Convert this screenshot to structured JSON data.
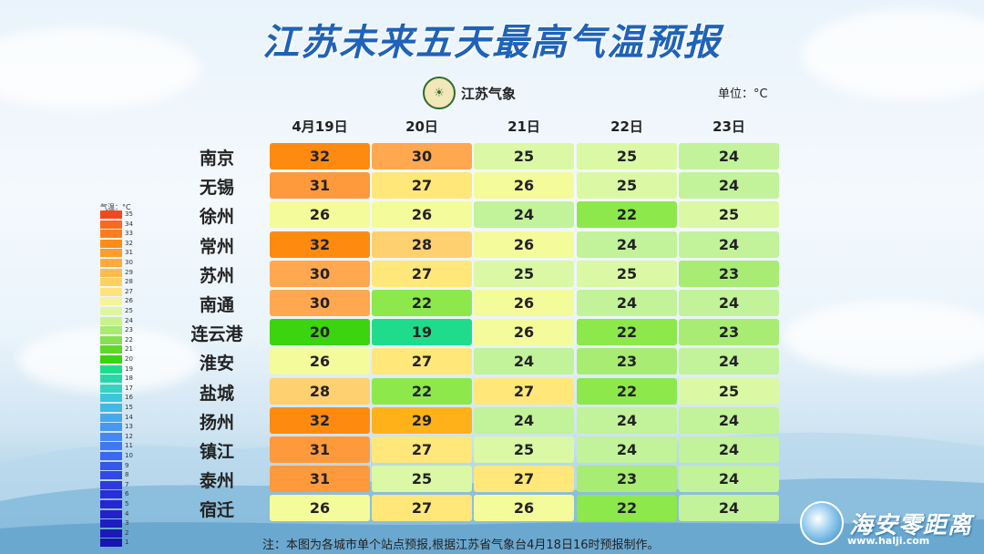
{
  "title": "江苏未来五天最高气温预报",
  "logo_text": "江苏气象",
  "logo_icon": "weather-service-emblem-icon",
  "unit_label": "单位：°C",
  "dates": [
    "4月19日",
    "20日",
    "21日",
    "22日",
    "23日"
  ],
  "cities": [
    {
      "name": "南京",
      "temps": [
        "32",
        "30",
        "25",
        "25",
        "24"
      ]
    },
    {
      "name": "无锡",
      "temps": [
        "31",
        "27",
        "26",
        "25",
        "24"
      ]
    },
    {
      "name": "徐州",
      "temps": [
        "26",
        "26",
        "24",
        "22",
        "25"
      ]
    },
    {
      "name": "常州",
      "temps": [
        "32",
        "28",
        "26",
        "24",
        "24"
      ]
    },
    {
      "name": "苏州",
      "temps": [
        "30",
        "27",
        "25",
        "25",
        "23"
      ]
    },
    {
      "name": "南通",
      "temps": [
        "30",
        "22",
        "26",
        "24",
        "24"
      ]
    },
    {
      "name": "连云港",
      "temps": [
        "20",
        "19",
        "26",
        "22",
        "23"
      ]
    },
    {
      "name": "淮安",
      "temps": [
        "26",
        "27",
        "24",
        "23",
        "24"
      ]
    },
    {
      "name": "盐城",
      "temps": [
        "28",
        "22",
        "27",
        "22",
        "25"
      ]
    },
    {
      "name": "扬州",
      "temps": [
        "32",
        "29",
        "24",
        "24",
        "24"
      ]
    },
    {
      "name": "镇江",
      "temps": [
        "31",
        "27",
        "25",
        "24",
        "24"
      ]
    },
    {
      "name": "泰州",
      "temps": [
        "31",
        "25",
        "27",
        "23",
        "24"
      ]
    },
    {
      "name": "宿迁",
      "temps": [
        "26",
        "27",
        "26",
        "22",
        "24"
      ]
    }
  ],
  "legend": {
    "title": "气温：°C",
    "values": [
      "35",
      "34",
      "33",
      "32",
      "31",
      "30",
      "29",
      "28",
      "27",
      "26",
      "25",
      "24",
      "23",
      "22",
      "21",
      "20",
      "19",
      "18",
      "17",
      "16",
      "15",
      "14",
      "13",
      "12",
      "11",
      "10",
      "9",
      "8",
      "7",
      "6",
      "5",
      "4",
      "3",
      "2",
      "1"
    ]
  },
  "colors": {
    "19": "#1fdc8c",
    "20": "#3bd40e",
    "22": "#8de84c",
    "23": "#a8ec74",
    "24": "#c2f29a",
    "25": "#dbf8a4",
    "26": "#f4fb9a",
    "27": "#ffe77a",
    "28": "#ffd070",
    "29": "#ffb11a",
    "30": "#ffa850",
    "31": "#ff9a3c",
    "32": "#ff8a10"
  },
  "footnote": "注：本图为各城市单个站点预报,根据江苏省气象台4月18日16时预报制作。",
  "brand": {
    "name": "海安零距离",
    "url": "www.halji.com",
    "icon": "brand-swirl-icon"
  }
}
